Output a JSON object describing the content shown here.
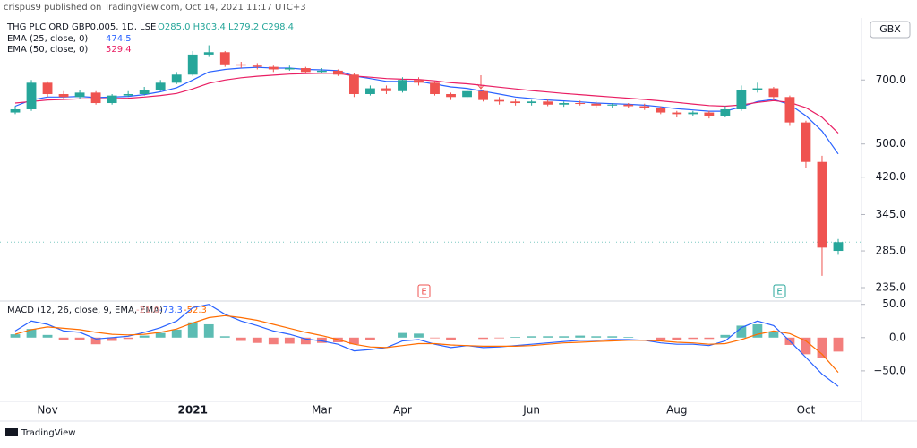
{
  "attribution": "crispus9 published on TradingView.com, Oct 14, 2021 11:17 UTC+3",
  "footer": "TradingView",
  "currency": "GBX",
  "earnings_label": "E",
  "chart_data": [
    {
      "type": "candlestick",
      "title": "THG PLC ORD GBP0.005, 1D, LSE",
      "ohlc_label": "O285.0 H303.4 L279.2 C298.4",
      "log_scale": true,
      "grid": false,
      "up_color": "#26a69a",
      "down_color": "#ef5350",
      "last_price": 298.4,
      "ylim": [
        220,
        970
      ],
      "yticks": [
        {
          "value": 700,
          "label": "700.0"
        },
        {
          "value": 500,
          "label": "500.0"
        },
        {
          "value": 420,
          "label": "420.0"
        },
        {
          "value": 345,
          "label": "345.0"
        },
        {
          "value": 285,
          "label": "285.0"
        },
        {
          "value": 235,
          "label": "235.0"
        }
      ],
      "open": [
        590,
        600,
        690,
        650,
        640,
        655,
        620,
        645,
        650,
        665,
        690,
        720,
        800,
        810,
        760,
        755,
        750,
        740,
        745,
        730,
        735,
        720,
        650,
        670,
        660,
        700,
        690,
        650,
        640,
        660,
        630,
        625,
        620,
        625,
        615,
        620,
        618,
        612,
        615,
        610,
        605,
        590,
        585,
        590,
        580,
        600,
        665,
        670,
        640,
        560,
        455,
        285
      ],
      "high": [
        610,
        700,
        695,
        660,
        665,
        660,
        650,
        660,
        675,
        700,
        730,
        815,
        840,
        815,
        770,
        765,
        755,
        755,
        750,
        745,
        740,
        725,
        680,
        680,
        710,
        710,
        695,
        655,
        665,
        665,
        640,
        635,
        630,
        632,
        625,
        628,
        625,
        620,
        620,
        618,
        610,
        595,
        595,
        595,
        610,
        680,
        690,
        675,
        645,
        565,
        470,
        303.4
      ],
      "low": [
        585,
        595,
        640,
        630,
        635,
        615,
        615,
        640,
        645,
        660,
        685,
        715,
        790,
        750,
        745,
        740,
        730,
        735,
        725,
        725,
        715,
        640,
        645,
        650,
        655,
        680,
        645,
        630,
        635,
        625,
        615,
        612,
        612,
        610,
        608,
        612,
        605,
        605,
        603,
        598,
        585,
        575,
        578,
        572,
        575,
        595,
        655,
        630,
        550,
        440,
        250,
        279.2
      ],
      "close": [
        600,
        690,
        650,
        640,
        655,
        620,
        645,
        650,
        665,
        690,
        720,
        800,
        810,
        760,
        755,
        750,
        740,
        745,
        730,
        735,
        720,
        650,
        670,
        660,
        700,
        690,
        650,
        640,
        660,
        630,
        625,
        620,
        625,
        615,
        620,
        618,
        612,
        615,
        610,
        605,
        590,
        585,
        590,
        580,
        600,
        665,
        670,
        640,
        560,
        455,
        290,
        298.4
      ],
      "series": [
        {
          "name": "EMA (25, close, 0)",
          "last_label": "474.5",
          "color": "#2962ff",
          "values": [
            610,
            630,
            640,
            640,
            642,
            638,
            640,
            642,
            648,
            658,
            672,
            700,
            730,
            740,
            745,
            748,
            745,
            745,
            740,
            738,
            735,
            715,
            705,
            695,
            695,
            695,
            685,
            675,
            670,
            660,
            650,
            640,
            635,
            630,
            627,
            624,
            620,
            618,
            616,
            613,
            608,
            602,
            598,
            594,
            594,
            608,
            625,
            632,
            615,
            580,
            535,
            474.5
          ]
        },
        {
          "name": "EMA (50, close, 0)",
          "last_label": "529.4",
          "color": "#e91e63",
          "values": [
            620,
            625,
            630,
            632,
            634,
            634,
            635,
            636,
            640,
            645,
            652,
            668,
            688,
            700,
            708,
            714,
            718,
            722,
            724,
            725,
            725,
            715,
            710,
            705,
            703,
            702,
            697,
            690,
            686,
            680,
            674,
            668,
            662,
            657,
            652,
            648,
            644,
            640,
            636,
            632,
            627,
            622,
            617,
            612,
            610,
            614,
            622,
            628,
            622,
            605,
            575,
            529.4
          ]
        }
      ]
    },
    {
      "type": "macd",
      "title": "MACD (12, 26, close, 9, EMA, EMA)",
      "categories": [
        null,
        null,
        "Nov",
        null,
        null,
        null,
        null,
        null,
        null,
        null,
        null,
        "2021",
        null,
        null,
        null,
        null,
        null,
        null,
        null,
        "Mar",
        null,
        null,
        null,
        null,
        "Apr",
        null,
        null,
        null,
        null,
        null,
        null,
        null,
        "Jun",
        null,
        null,
        null,
        null,
        null,
        null,
        null,
        null,
        "Aug",
        null,
        null,
        null,
        null,
        null,
        null,
        null,
        "Oct",
        null,
        null
      ],
      "ylim": [
        -96,
        55
      ],
      "yticks": [
        {
          "value": 50,
          "label": "50.0"
        },
        {
          "value": 0,
          "label": "0.0"
        },
        {
          "value": -50,
          "label": "−50.0"
        }
      ],
      "histogram": {
        "name": "Histogram",
        "last_label": "-21.0",
        "up_color": "#26a69a",
        "down_color": "#ef5350",
        "values": [
          5,
          13,
          4,
          -4,
          -4,
          -10,
          -5,
          -2,
          3,
          7,
          12,
          23,
          20,
          2,
          -5,
          -8,
          -10,
          -9,
          -10,
          -8,
          -7,
          -10,
          -4,
          0,
          7,
          6,
          -1,
          -4,
          0,
          -2,
          -1,
          1,
          2,
          2,
          2,
          3,
          2,
          2,
          1,
          0,
          -3,
          -3,
          -2,
          -2,
          4,
          18,
          20,
          8,
          -11,
          -25,
          -30,
          -21.0
        ]
      },
      "series": [
        {
          "name": "MACD",
          "last_label": "-73.3",
          "color": "#2962ff",
          "values": [
            10,
            25,
            20,
            10,
            8,
            -2,
            0,
            2,
            8,
            15,
            25,
            45,
            50,
            35,
            25,
            18,
            10,
            5,
            -2,
            -5,
            -10,
            -20,
            -18,
            -15,
            -5,
            -3,
            -10,
            -15,
            -12,
            -15,
            -14,
            -12,
            -10,
            -8,
            -6,
            -4,
            -4,
            -3,
            -3,
            -4,
            -8,
            -10,
            -10,
            -12,
            -5,
            15,
            25,
            18,
            -5,
            -30,
            -55,
            -73.3
          ]
        },
        {
          "name": "Signal",
          "last_label": "-52.3",
          "color": "#ff6d00",
          "values": [
            5,
            12,
            16,
            14,
            12,
            8,
            5,
            4,
            5,
            8,
            13,
            22,
            30,
            33,
            30,
            26,
            20,
            14,
            8,
            3,
            -3,
            -10,
            -14,
            -15,
            -12,
            -9,
            -9,
            -11,
            -12,
            -13,
            -13,
            -13,
            -12,
            -10,
            -8,
            -7,
            -6,
            -5,
            -4,
            -4,
            -5,
            -7,
            -8,
            -10,
            -9,
            -3,
            5,
            10,
            6,
            -5,
            -25,
            -52.3
          ]
        }
      ]
    }
  ]
}
